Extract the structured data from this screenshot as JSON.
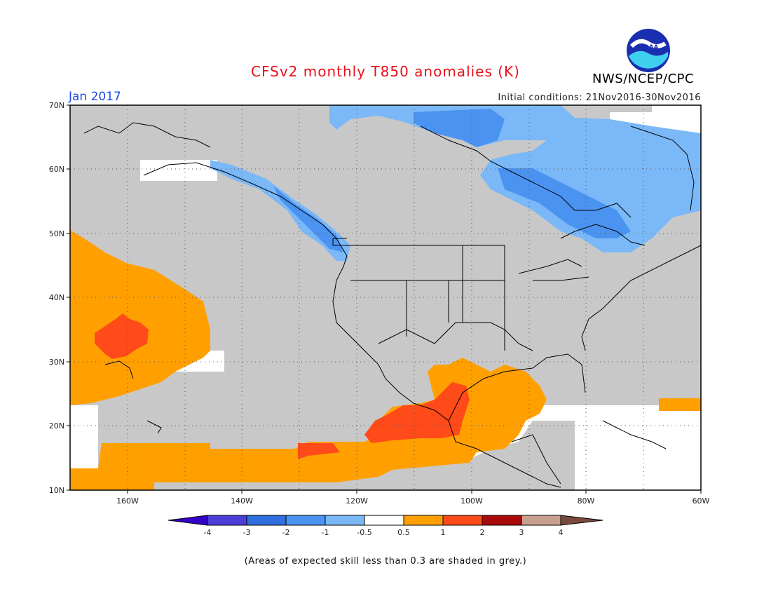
{
  "header": {
    "title": "CFSv2 monthly T850 anomalies (K)",
    "agency": "NWS/NCEP/CPC",
    "logo_text": "NOAA",
    "month": "Jan 2017",
    "initial_conditions": "Initial conditions: 21Nov2016-30Nov2016"
  },
  "axes": {
    "lat_labels": [
      "70N",
      "60N",
      "50N",
      "40N",
      "30N",
      "20N",
      "10N"
    ],
    "lon_labels": [
      "160W",
      "140W",
      "120W",
      "100W",
      "80W",
      "60W"
    ]
  },
  "colorbar": {
    "labels": [
      "-4",
      "-3",
      "-2",
      "-1",
      "-0.5",
      "0.5",
      "1",
      "2",
      "3",
      "4"
    ],
    "colors": [
      "#3500c8",
      "#4b3fd8",
      "#2f6fe0",
      "#4b93f0",
      "#7ab8f8",
      "#ffffff",
      "#ffa000",
      "#ff4a1a",
      "#aa0a0a",
      "#c8a090",
      "#7a4a3a"
    ]
  },
  "colors": {
    "grey_skill": "#c8c8c8",
    "orange": "#ffa000",
    "red": "#ff4a1a",
    "blue_light": "#7ab8f8",
    "blue_mid": "#4b93f0"
  },
  "footer": {
    "note": "(Areas of expected skill less than 0.3 are shaded in grey.)"
  }
}
